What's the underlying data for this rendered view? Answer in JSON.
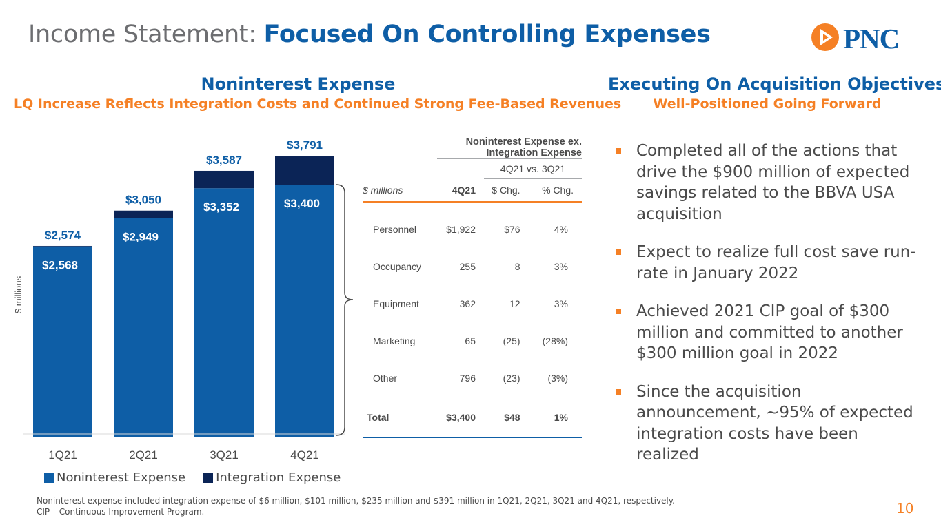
{
  "header": {
    "title_light": "Income Statement:",
    "title_bold": "Focused On Controlling Expenses",
    "logo_text": "PNC"
  },
  "left": {
    "heading": "Noninterest Expense",
    "subheading": "LQ Increase Reflects Integration Costs and Continued Strong Fee-Based Revenues"
  },
  "right": {
    "heading": "Executing On Acquisition Objectives",
    "subheading": "Well-Positioned Going Forward",
    "bullets": [
      "Completed all of the actions that drive the $900 million of expected savings related to the BBVA USA acquisition",
      "Expect to realize full cost save run-rate in January 2022",
      "Achieved 2021 CIP goal of $300 million and committed to another $300 million goal in 2022",
      "Since the acquisition announcement, ~95% of expected integration costs have been realized"
    ]
  },
  "chart_data": {
    "type": "bar",
    "stacked": true,
    "categories": [
      "1Q21",
      "2Q21",
      "3Q21",
      "4Q21"
    ],
    "series": [
      {
        "name": "Noninterest Expense",
        "values": [
          2568,
          2949,
          3352,
          3400
        ],
        "labels": [
          "$2,568",
          "$2,949",
          "$3,352",
          "$3,400"
        ],
        "color": "#0e5ea6"
      },
      {
        "name": "Integration Expense",
        "values": [
          6,
          101,
          235,
          391
        ],
        "color": "#0b2456"
      }
    ],
    "totals": [
      2574,
      3050,
      3587,
      3791
    ],
    "total_labels": [
      "$2,574",
      "$3,050",
      "$3,587",
      "$3,791"
    ],
    "ylabel": "$ millions",
    "ylim": [
      0,
      3791
    ],
    "legend": "bottom"
  },
  "table": {
    "title": "Noninterest Expense ex. Integration Expense",
    "compare_header": "4Q21 vs. 3Q21",
    "units": "$ millions",
    "col_headers": [
      "4Q21",
      "$ Chg.",
      "% Chg."
    ],
    "rows": [
      {
        "label": "Personnel",
        "value": "$1,922",
        "chg": "$76",
        "pct": "4%"
      },
      {
        "label": "Occupancy",
        "value": "255",
        "chg": "8",
        "pct": "3%"
      },
      {
        "label": "Equipment",
        "value": "362",
        "chg": "12",
        "pct": "3%"
      },
      {
        "label": "Marketing",
        "value": "65",
        "chg": "(25)",
        "pct": "(28%)"
      },
      {
        "label": "Other",
        "value": "796",
        "chg": "(23)",
        "pct": "(3%)"
      }
    ],
    "total": {
      "label": "Total",
      "value": "$3,400",
      "chg": "$48",
      "pct": "1%"
    }
  },
  "footnotes": [
    "Noninterest expense included integration expense of $6 million, $101 million, $235 million and $391 million in 1Q21, 2Q21, 3Q21 and 4Q21, respectively.",
    "CIP – Continuous Improvement Program."
  ],
  "page_number": "10",
  "colors": {
    "blue": "#0e5ea6",
    "navy": "#0b2456",
    "orange": "#f58025"
  }
}
